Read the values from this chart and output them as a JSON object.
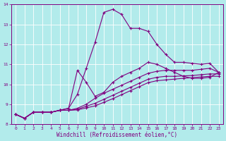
{
  "xlabel": "Windchill (Refroidissement éolien,°C)",
  "background_color": "#b2ebeb",
  "line_color": "#800080",
  "grid_color": "#ffffff",
  "x_values": [
    0,
    1,
    2,
    3,
    4,
    5,
    6,
    7,
    8,
    9,
    10,
    11,
    12,
    13,
    14,
    15,
    16,
    17,
    18,
    19,
    20,
    21,
    22,
    23
  ],
  "line_main": [
    8.5,
    8.3,
    8.6,
    8.6,
    8.6,
    8.7,
    8.8,
    9.5,
    10.8,
    12.1,
    13.6,
    13.75,
    13.5,
    12.8,
    12.8,
    12.65,
    12.0,
    11.5,
    11.1,
    11.1,
    11.05,
    11.0,
    11.05,
    10.6
  ],
  "line_bump": [
    8.5,
    8.3,
    8.6,
    8.6,
    8.6,
    8.7,
    8.8,
    10.7,
    10.1,
    9.4,
    9.6,
    10.1,
    10.4,
    10.6,
    10.8,
    11.1,
    11.0,
    10.8,
    10.6,
    10.4,
    10.3,
    10.3,
    10.35,
    10.6
  ],
  "line_upper": [
    8.5,
    8.3,
    8.6,
    8.6,
    8.6,
    8.7,
    8.7,
    8.8,
    9.0,
    9.3,
    9.55,
    9.75,
    9.95,
    10.15,
    10.35,
    10.55,
    10.65,
    10.7,
    10.7,
    10.7,
    10.7,
    10.75,
    10.8,
    10.6
  ],
  "line_mid": [
    8.5,
    8.3,
    8.6,
    8.6,
    8.6,
    8.7,
    8.7,
    8.75,
    8.9,
    9.05,
    9.25,
    9.45,
    9.65,
    9.85,
    10.05,
    10.25,
    10.35,
    10.4,
    10.4,
    10.42,
    10.44,
    10.48,
    10.52,
    10.52
  ],
  "line_lower": [
    8.5,
    8.3,
    8.6,
    8.6,
    8.6,
    8.7,
    8.7,
    8.72,
    8.82,
    8.92,
    9.1,
    9.28,
    9.48,
    9.68,
    9.88,
    10.08,
    10.18,
    10.22,
    10.26,
    10.3,
    10.33,
    10.37,
    10.4,
    10.4
  ],
  "ylim": [
    8.0,
    14.0
  ],
  "xlim_min": -0.5,
  "xlim_max": 23.5,
  "yticks": [
    8,
    9,
    10,
    11,
    12,
    13,
    14
  ],
  "xticks": [
    0,
    1,
    2,
    3,
    4,
    5,
    6,
    7,
    8,
    9,
    10,
    11,
    12,
    13,
    14,
    15,
    16,
    17,
    18,
    19,
    20,
    21,
    22,
    23
  ]
}
